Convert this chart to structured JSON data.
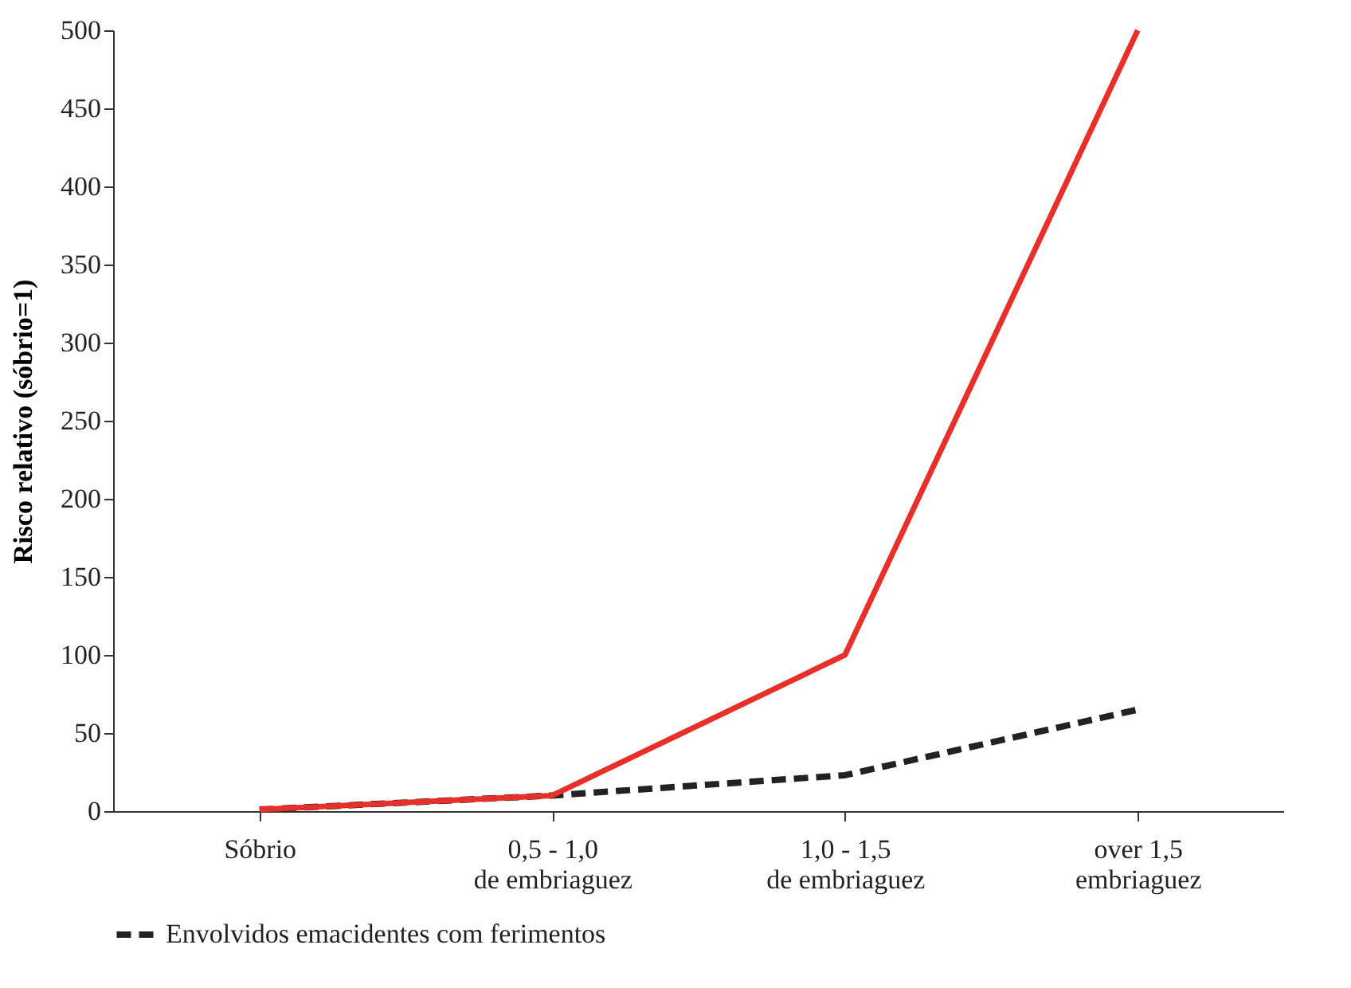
{
  "chart_data": {
    "type": "line",
    "ylabel": "Risco relativo (sóbrio=1)",
    "categories": [
      "Sóbrio",
      "0,5 - 1,0\nde embriaguez",
      "1,0 - 1,5\nde embriaguez",
      "over 1,5\nembriaguez"
    ],
    "series": [
      {
        "color": "#e8302a",
        "line_style": "solid",
        "values": [
          1,
          10,
          100,
          500
        ]
      },
      {
        "name": "Envolvidos emacidentes com ferimentos",
        "color": "#222222",
        "line_style": "dashed",
        "values": [
          1,
          10,
          23,
          65
        ]
      }
    ],
    "ylim": [
      0,
      500
    ],
    "yticks": [
      0,
      50,
      100,
      150,
      200,
      250,
      300,
      350,
      400,
      450,
      500
    ],
    "grid": false,
    "legend": "bottom",
    "marker": "none"
  }
}
